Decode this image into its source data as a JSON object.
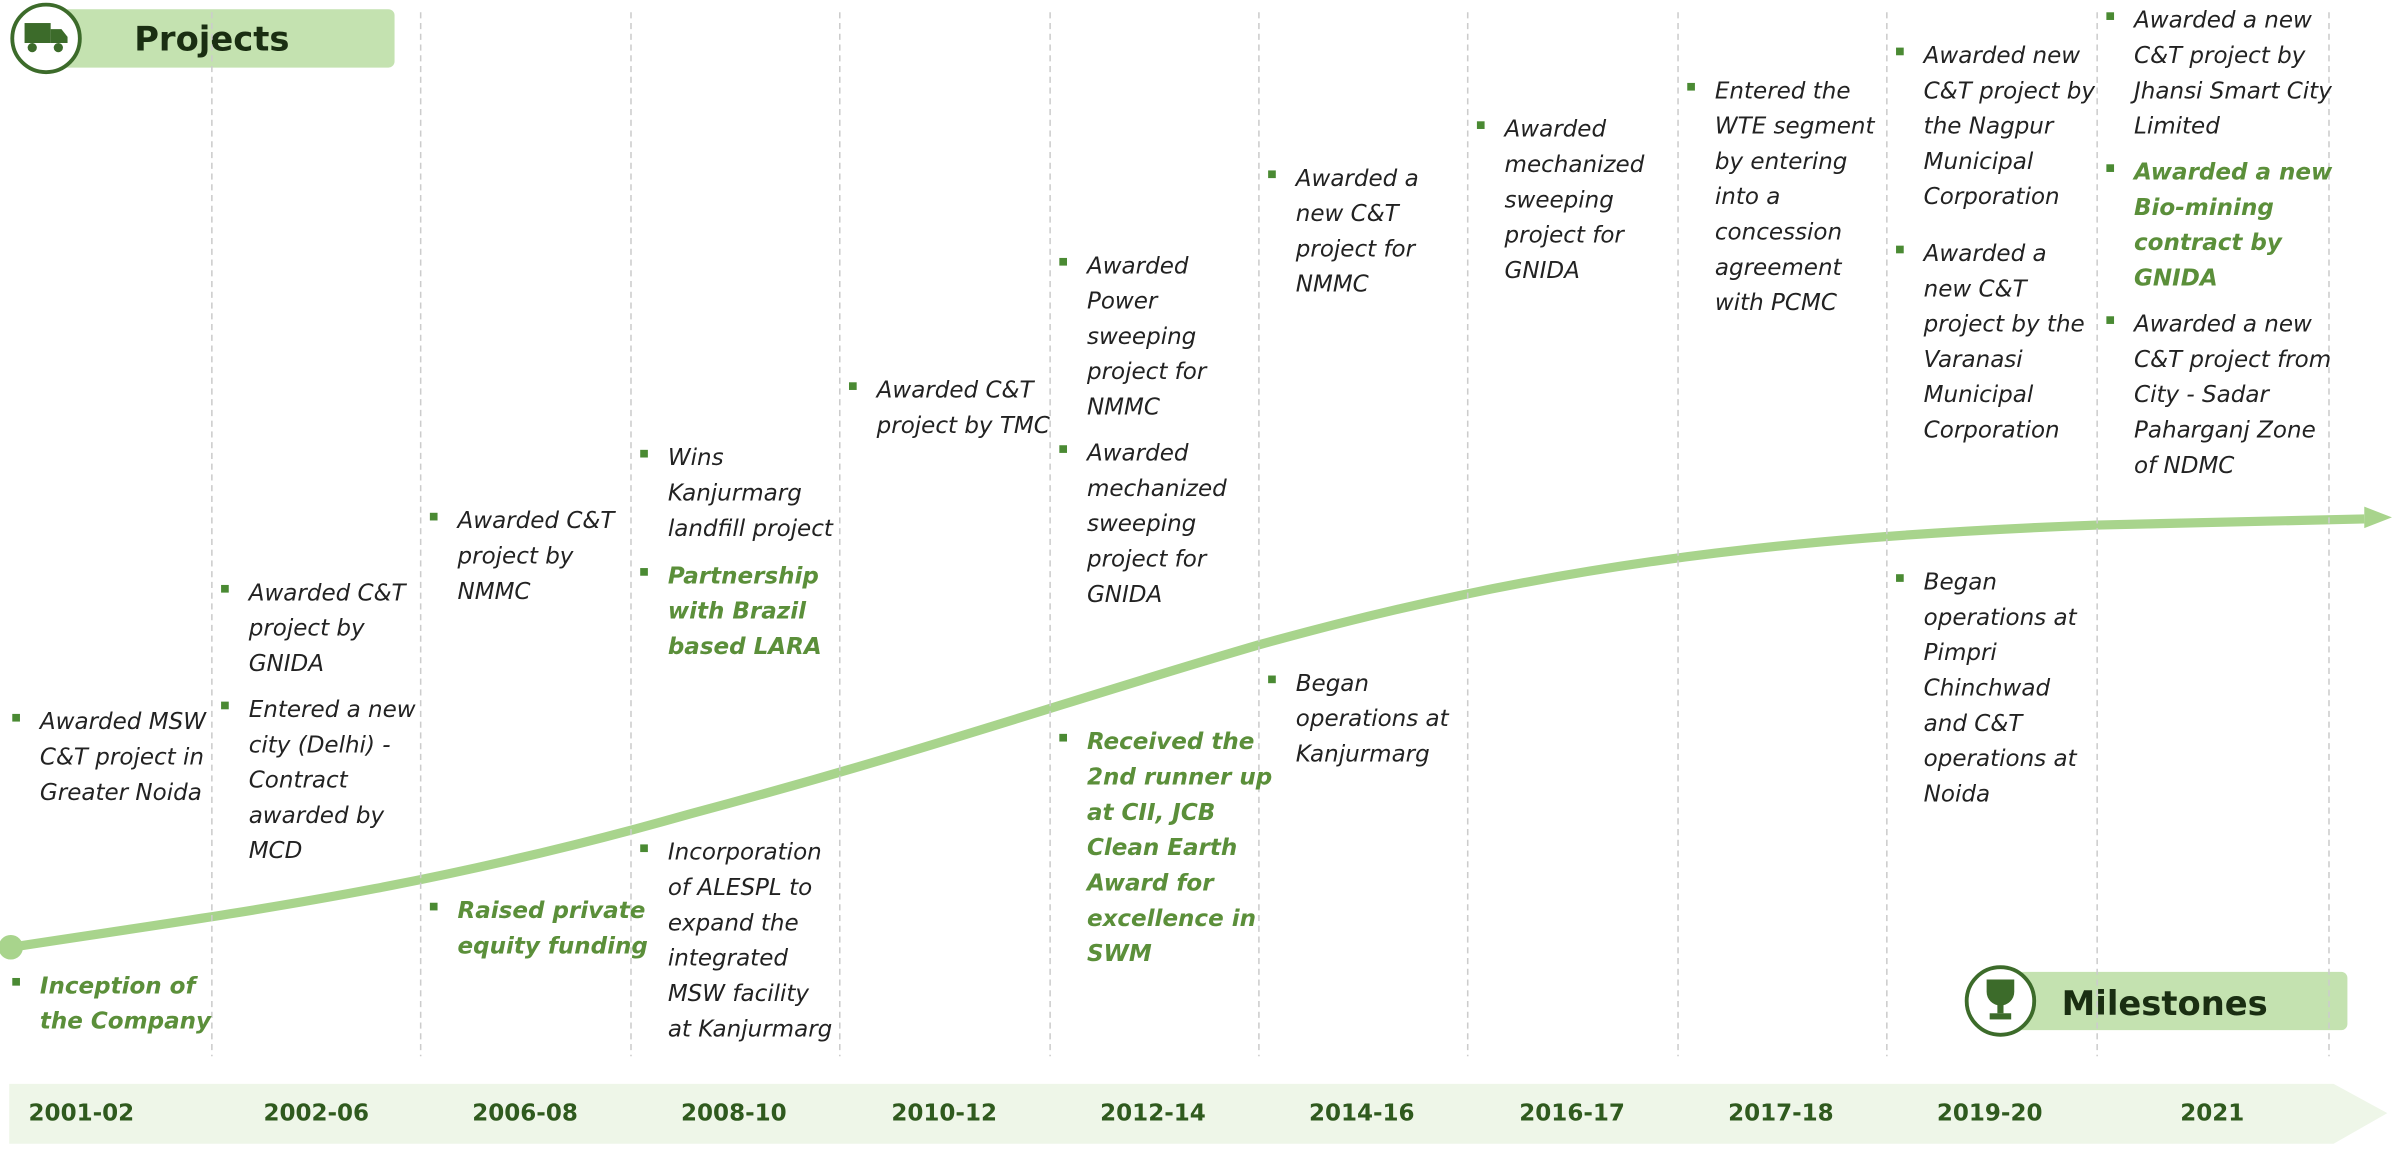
{
  "header": {
    "projects": "Projects",
    "milestones": "Milestones"
  },
  "columns": [
    {
      "year": "2001-02",
      "projects": [
        {
          "lines": [
            "Awarded MSW",
            "C&T project in",
            "Greater Noida"
          ]
        }
      ],
      "milestones": [
        {
          "lines": [
            "Inception of",
            "the Company"
          ],
          "emphasis": true
        }
      ]
    },
    {
      "year": "2002-06",
      "projects": [
        {
          "lines": [
            "Awarded C&T",
            "project by",
            "GNIDA"
          ]
        },
        {
          "lines": [
            "Entered a new",
            "city (Delhi) -",
            "Contract",
            "awarded by",
            "MCD"
          ]
        }
      ],
      "milestones": []
    },
    {
      "year": "2006-08",
      "projects": [
        {
          "lines": [
            "Awarded C&T",
            "project by",
            "NMMC"
          ]
        }
      ],
      "milestones": [
        {
          "lines": [
            "Raised private",
            "equity funding"
          ],
          "emphasis": true
        }
      ]
    },
    {
      "year": "2008-10",
      "projects": [
        {
          "lines": [
            "Wins",
            "Kanjurmarg",
            "landfill project"
          ]
        },
        {
          "lines": [
            "Partnership",
            "with Brazil",
            "based LARA"
          ],
          "emphasis": true
        }
      ],
      "milestones": [
        {
          "lines": [
            "Incorporation",
            "of ALESPL to",
            "expand the",
            "integrated",
            "MSW facility",
            "at Kanjurmarg"
          ]
        }
      ]
    },
    {
      "year": "2010-12",
      "projects": [
        {
          "lines": [
            "Awarded C&T",
            "project by TMC"
          ]
        }
      ],
      "milestones": []
    },
    {
      "year": "2012-14",
      "projects": [
        {
          "lines": [
            "Awarded",
            "Power",
            "sweeping",
            "project for",
            "NMMC"
          ]
        },
        {
          "lines": [
            "Awarded",
            "mechanized",
            "sweeping",
            "project for",
            "GNIDA"
          ]
        }
      ],
      "milestones": [
        {
          "lines": [
            "Received the",
            "2nd runner up",
            "at CII, JCB",
            "Clean Earth",
            "Award for",
            "excellence in",
            "SWM"
          ],
          "emphasis": true
        }
      ]
    },
    {
      "year": "2014-16",
      "projects": [
        {
          "lines": [
            "Awarded a",
            "new C&T",
            "project for",
            "NMMC"
          ]
        }
      ],
      "milestones": [
        {
          "lines": [
            "Began",
            "operations at",
            "Kanjurmarg"
          ]
        }
      ]
    },
    {
      "year": "2016-17",
      "projects": [
        {
          "lines": [
            "Awarded",
            "mechanized",
            "sweeping",
            "project for",
            "GNIDA"
          ]
        }
      ],
      "milestones": []
    },
    {
      "year": "2017-18",
      "projects": [
        {
          "lines": [
            "Entered the",
            "WTE segment",
            "by entering",
            "into a",
            "concession",
            "agreement",
            "with PCMC"
          ]
        }
      ],
      "milestones": []
    },
    {
      "year": "2019-20",
      "projects": [
        {
          "lines": [
            "Awarded  new",
            "C&T project by",
            "the Nagpur",
            "Municipal",
            "Corporation"
          ]
        },
        {
          "lines": [
            "Awarded a",
            "new C&T",
            "project by the",
            "Varanasi",
            "Municipal",
            "Corporation"
          ]
        }
      ],
      "milestones": [
        {
          "lines": [
            "Began",
            "operations at",
            "Pimpri",
            "Chinchwad",
            "and  C&T",
            "operations at",
            "Noida"
          ]
        }
      ]
    },
    {
      "year": "2021",
      "projects": [
        {
          "lines": [
            "Awarded a new",
            "C&T project by",
            "Jhansi Smart City",
            "Limited"
          ]
        },
        {
          "lines": [
            "Awarded a new",
            "Bio-mining",
            "contract by",
            "GNIDA"
          ],
          "emphasis": true
        },
        {
          "lines": [
            "Awarded a new",
            "C&T project from",
            "City - Sadar",
            "Paharganj Zone",
            "of NDMC"
          ]
        }
      ],
      "milestones": []
    }
  ]
}
